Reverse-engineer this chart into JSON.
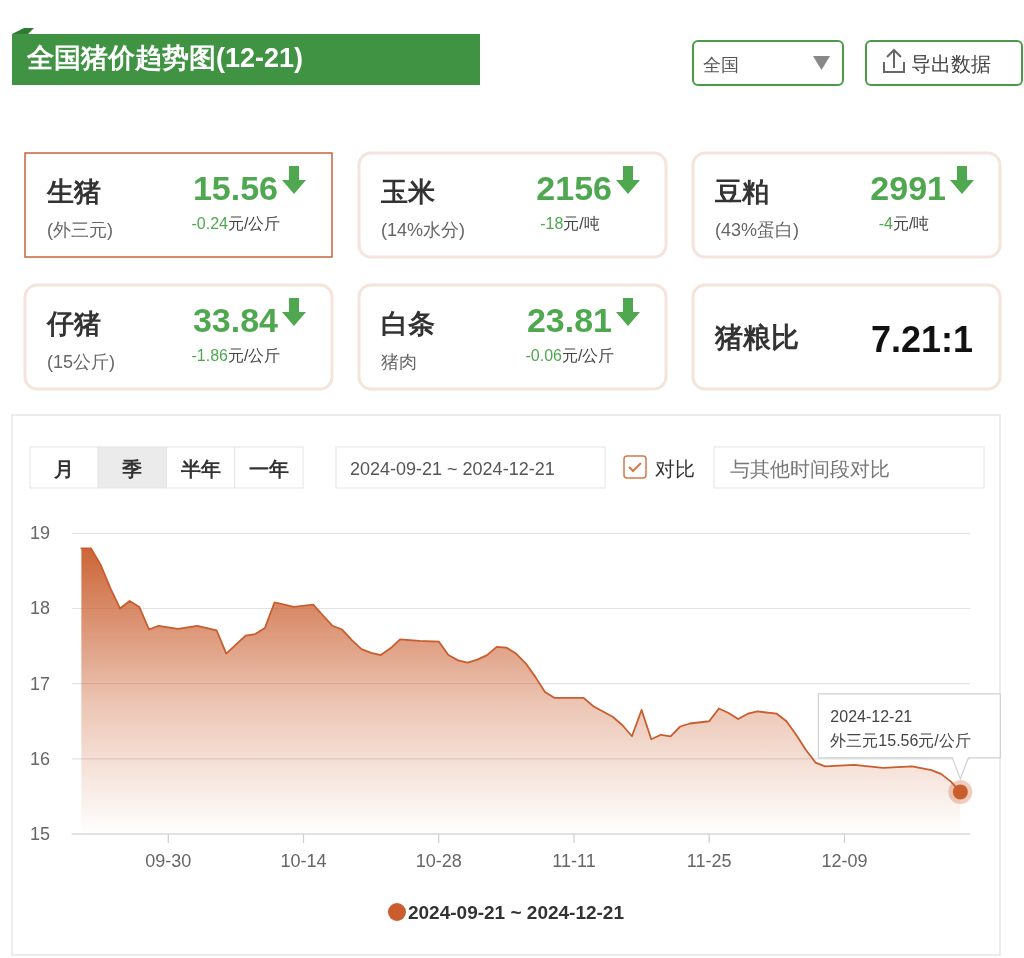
{
  "chart_data": [
    {
      "type": "other",
      "title": "全国猪价趋势图(12-21)",
      "annotations": [
        "全国",
        "导出数据",
        "生猪",
        "(外三元)",
        "15.56",
        "-0.24元/公斤",
        "玉米",
        "(14%水分)",
        "2156",
        "-18元/吨",
        "豆粕",
        "(43%蛋白)",
        "2991",
        "-4元/吨",
        "仔猪",
        "(15公斤)",
        "33.84",
        "-1.86元/公斤",
        "白条",
        "猪肉",
        "23.81",
        "-0.06元/公斤",
        "猪粮比",
        "7.21:1"
      ]
    },
    {
      "type": "area",
      "x": [
        "2024-09-21",
        "2024-09-22",
        "2024-09-23",
        "2024-09-24",
        "2024-09-25",
        "2024-09-26",
        "2024-09-27",
        "2024-09-28",
        "2024-09-29",
        "2024-10-01",
        "2024-10-03",
        "2024-10-05",
        "2024-10-06",
        "2024-10-08",
        "2024-10-09",
        "2024-10-10",
        "2024-10-11",
        "2024-10-12",
        "2024-10-13",
        "2024-10-15",
        "2024-10-16",
        "2024-10-17",
        "2024-10-18",
        "2024-10-19",
        "2024-10-20",
        "2024-10-21",
        "2024-10-22",
        "2024-10-23",
        "2024-10-24",
        "2024-10-26",
        "2024-10-28",
        "2024-10-29",
        "2024-10-30",
        "2024-10-31",
        "2024-11-01",
        "2024-11-02",
        "2024-11-03",
        "2024-11-04",
        "2024-11-05",
        "2024-11-06",
        "2024-11-07",
        "2024-11-08",
        "2024-11-09",
        "2024-11-12",
        "2024-11-13",
        "2024-11-15",
        "2024-11-16",
        "2024-11-17",
        "2024-11-18",
        "2024-11-19",
        "2024-11-20",
        "2024-11-21",
        "2024-11-22",
        "2024-11-23",
        "2024-11-25",
        "2024-11-26",
        "2024-11-27",
        "2024-11-28",
        "2024-11-29",
        "2024-11-30",
        "2024-12-02",
        "2024-12-03",
        "2024-12-04",
        "2024-12-05",
        "2024-12-06",
        "2024-12-07",
        "2024-12-10",
        "2024-12-13",
        "2024-12-16",
        "2024-12-18",
        "2024-12-19",
        "2024-12-20",
        "2024-12-21"
      ],
      "series": [
        {
          "name": "2024-09-21 ~ 2024-12-21",
          "color": "#c95d2d",
          "values": [
            18.8,
            18.8,
            18.58,
            18.27,
            18.0,
            18.1,
            18.02,
            17.72,
            17.77,
            17.73,
            17.77,
            17.71,
            17.4,
            17.64,
            17.66,
            17.74,
            18.08,
            18.05,
            18.02,
            18.05,
            17.91,
            17.77,
            17.72,
            17.58,
            17.46,
            17.41,
            17.38,
            17.47,
            17.59,
            17.57,
            17.56,
            17.38,
            17.31,
            17.28,
            17.32,
            17.38,
            17.49,
            17.48,
            17.4,
            17.27,
            17.09,
            16.89,
            16.81,
            16.81,
            16.7,
            16.56,
            16.45,
            16.3,
            16.65,
            16.26,
            16.32,
            16.3,
            16.43,
            16.47,
            16.5,
            16.67,
            16.61,
            16.53,
            16.6,
            16.63,
            16.6,
            16.5,
            16.32,
            16.12,
            15.95,
            15.9,
            15.92,
            15.88,
            15.9,
            15.85,
            15.8,
            15.7,
            15.56
          ]
        }
      ],
      "xlim": [
        "2024-09-20",
        "2024-12-22"
      ],
      "xticks": [
        {
          "value": "2024-09-30",
          "label": "09-30"
        },
        {
          "value": "2024-10-14",
          "label": "10-14"
        },
        {
          "value": "2024-10-28",
          "label": "10-28"
        },
        {
          "value": "2024-11-11",
          "label": "11-11"
        },
        {
          "value": "2024-11-25",
          "label": "11-25"
        },
        {
          "value": "2024-12-09",
          "label": "12-09"
        }
      ],
      "ylim": [
        15,
        19
      ],
      "yticks": [
        15,
        16,
        17,
        18,
        19
      ],
      "grid": "y",
      "legend": "bottom",
      "annotations": [
        "月",
        "季",
        "半年",
        "一年",
        "2024-09-21 ~ 2024-12-21",
        "对比",
        "与其他时间段对比",
        "2024-12-21",
        {
          "text": "外三元15.56元/公斤",
          "x": "2024-12-21",
          "y": 15.56
        }
      ]
    }
  ]
}
